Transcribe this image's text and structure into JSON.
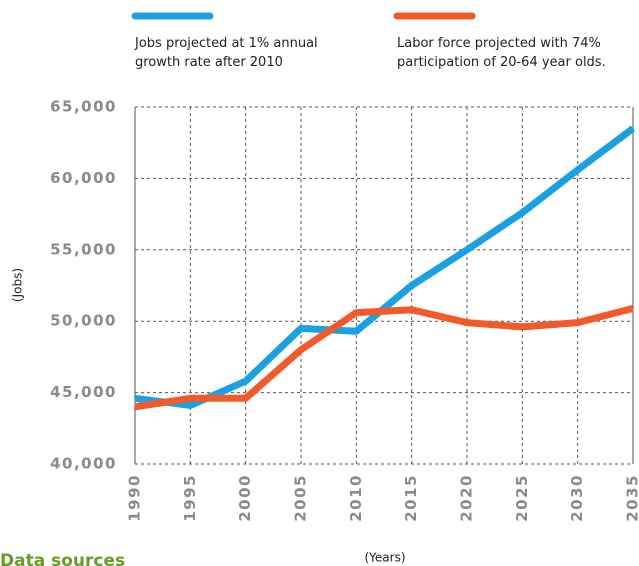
{
  "chart_data": {
    "type": "line",
    "x_label": "(Years)",
    "y_label": "(Jobs)",
    "footer": "Data sources",
    "x": [
      1990,
      1995,
      2000,
      2005,
      2010,
      2015,
      2020,
      2025,
      2030,
      2035
    ],
    "xlim": [
      1990,
      2035
    ],
    "xticks": [
      1990,
      1995,
      2000,
      2005,
      2010,
      2015,
      2020,
      2025,
      2030,
      2035
    ],
    "ylim": [
      40000,
      65000
    ],
    "yticks": [
      {
        "value": 40000,
        "label": "40,000"
      },
      {
        "value": 45000,
        "label": "45,000"
      },
      {
        "value": 50000,
        "label": "50,000"
      },
      {
        "value": 55000,
        "label": "55,000"
      },
      {
        "value": 60000,
        "label": "60,000"
      },
      {
        "value": 65000,
        "label": "65,000"
      }
    ],
    "grid": true,
    "series": [
      {
        "name": "Jobs projected at 1% annual growth rate after 2010",
        "color": "#1ba1e2",
        "values": [
          44600,
          44100,
          45800,
          49500,
          49300,
          52500,
          55000,
          57600,
          60600,
          63500
        ]
      },
      {
        "name": "Labor force projected with 74% participation of 20-64 year olds.",
        "color": "#f15a2b",
        "values": [
          44000,
          44600,
          44600,
          48000,
          50600,
          50800,
          49900,
          49600,
          49900,
          50900
        ]
      }
    ]
  }
}
